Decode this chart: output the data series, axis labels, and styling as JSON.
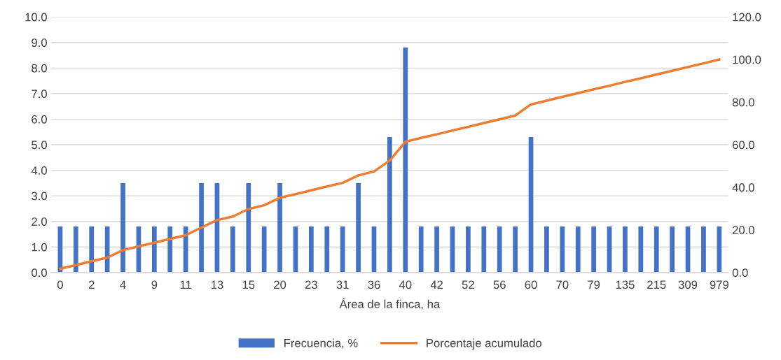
{
  "chart_data": {
    "type": "bar",
    "xlabel": "Área de la finca, ha",
    "categories": [
      "0",
      null,
      "2",
      null,
      "4",
      null,
      "9",
      null,
      "11",
      null,
      "13",
      null,
      "15",
      null,
      "20",
      null,
      "23",
      null,
      "31",
      null,
      "36",
      null,
      "40",
      null,
      "42",
      null,
      "52",
      null,
      "56",
      null,
      "60",
      null,
      "70",
      null,
      "79",
      null,
      "135",
      null,
      "215",
      null,
      "309",
      null,
      "979"
    ],
    "series": [
      {
        "name": "Frecuencia, %",
        "color": "#4472c4",
        "values": [
          1.8,
          1.8,
          1.8,
          1.8,
          3.5,
          1.8,
          1.8,
          1.8,
          1.8,
          3.5,
          3.5,
          1.8,
          3.5,
          1.8,
          3.5,
          1.8,
          1.8,
          1.8,
          1.8,
          3.5,
          1.8,
          5.3,
          8.8,
          1.8,
          1.8,
          1.8,
          1.8,
          1.8,
          1.8,
          1.8,
          5.3,
          1.8,
          1.8,
          1.8,
          1.8,
          1.8,
          1.8,
          1.8,
          1.8,
          1.8,
          1.8,
          1.8,
          1.8
        ]
      },
      {
        "name": "Porcentaje acumulado",
        "type": "line",
        "axis": "y2",
        "color": "#ed7d31",
        "values": [
          1.8,
          3.5,
          5.3,
          7.0,
          10.5,
          12.3,
          14.0,
          15.8,
          17.5,
          21.1,
          24.6,
          26.3,
          29.8,
          31.6,
          35.1,
          36.8,
          38.6,
          40.4,
          42.1,
          45.6,
          47.4,
          52.6,
          61.4,
          63.2,
          64.9,
          66.7,
          68.4,
          70.2,
          71.9,
          73.7,
          78.9,
          80.7,
          82.5,
          84.2,
          86.0,
          87.7,
          89.5,
          91.2,
          93.0,
          94.7,
          96.5,
          98.2,
          100.0
        ]
      }
    ],
    "ylim": [
      0,
      10
    ],
    "yticks": [
      {
        "value": 0,
        "label": "0.0"
      },
      {
        "value": 1,
        "label": "1.0"
      },
      {
        "value": 2,
        "label": "2.0"
      },
      {
        "value": 3,
        "label": "3.0"
      },
      {
        "value": 4,
        "label": "4.0"
      },
      {
        "value": 5,
        "label": "5.0"
      },
      {
        "value": 6,
        "label": "6.0"
      },
      {
        "value": 7,
        "label": "7.0"
      },
      {
        "value": 8,
        "label": "8.0"
      },
      {
        "value": 9,
        "label": "9.0"
      },
      {
        "value": 10,
        "label": "10.0"
      }
    ],
    "y2lim": [
      0,
      120
    ],
    "y2ticks": [
      {
        "value": 0,
        "label": "0.0"
      },
      {
        "value": 20,
        "label": "20.0"
      },
      {
        "value": 40,
        "label": "40.0"
      },
      {
        "value": 60,
        "label": "60.0"
      },
      {
        "value": 80,
        "label": "80.0"
      },
      {
        "value": 100,
        "label": "100.0"
      },
      {
        "value": 120,
        "label": "120.0"
      }
    ],
    "grid": "y",
    "legend": "bottom",
    "marker": "none",
    "line_style": "solid"
  }
}
